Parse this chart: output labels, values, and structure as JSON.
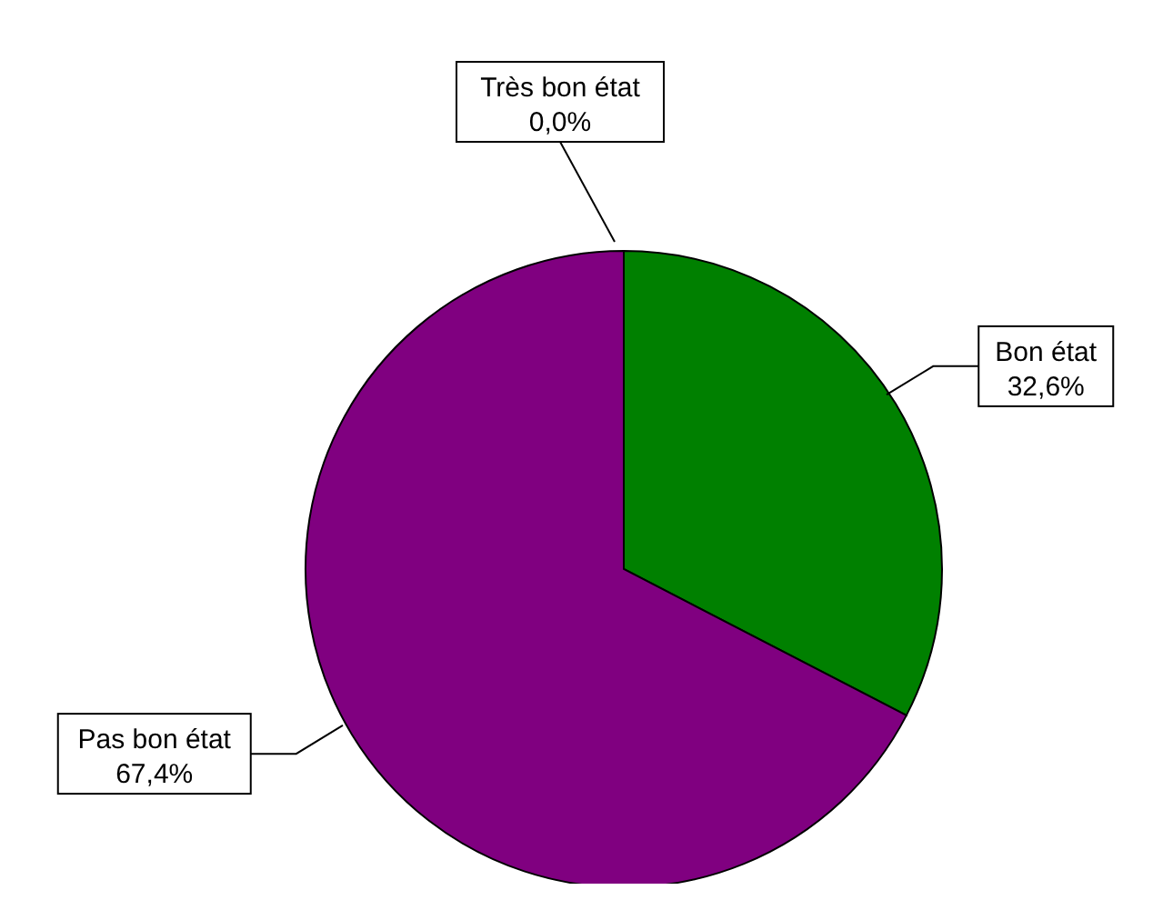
{
  "chart_data": {
    "type": "pie",
    "categories": [
      "Très bon état",
      "Bon état",
      "Pas bon état"
    ],
    "values": [
      0.0,
      32.6,
      67.4
    ],
    "value_labels": [
      "0,0%",
      "32,6%",
      "67,4%"
    ],
    "colors": [
      null,
      "#008000",
      "#800080"
    ],
    "legend": false
  }
}
